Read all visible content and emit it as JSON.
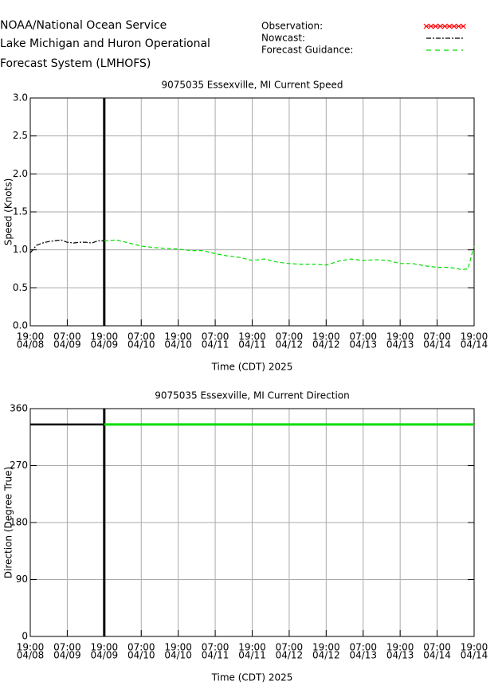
{
  "header": {
    "lines": [
      "NOAA/National Ocean Service",
      "Lake Michigan and Huron Operational",
      "Forecast System (LMHOFS)"
    ]
  },
  "legend": [
    {
      "label": "Observation:",
      "color": "#ff0000",
      "style": "x"
    },
    {
      "label": "Nowcast:",
      "color": "#000000",
      "style": "dash-dot"
    },
    {
      "label": "Forecast Guidance:",
      "color": "#00dd00",
      "style": "dash"
    }
  ],
  "chart_data": [
    {
      "type": "line",
      "title": "9075035 Essexville, MI Current Speed",
      "ylabel": "Speed (Knots)",
      "xlabel": "Time (CDT) 2025",
      "xlim": [
        0,
        144
      ],
      "xticks": [
        {
          "value": 0,
          "label": [
            "19:00",
            "04/08"
          ]
        },
        {
          "value": 12,
          "label": [
            "07:00",
            "04/09"
          ]
        },
        {
          "value": 24,
          "label": [
            "19:00",
            "04/09"
          ]
        },
        {
          "value": 36,
          "label": [
            "07:00",
            "04/10"
          ]
        },
        {
          "value": 48,
          "label": [
            "19:00",
            "04/10"
          ]
        },
        {
          "value": 60,
          "label": [
            "07:00",
            "04/11"
          ]
        },
        {
          "value": 72,
          "label": [
            "19:00",
            "04/11"
          ]
        },
        {
          "value": 84,
          "label": [
            "07:00",
            "04/12"
          ]
        },
        {
          "value": 96,
          "label": [
            "19:00",
            "04/12"
          ]
        },
        {
          "value": 108,
          "label": [
            "07:00",
            "04/13"
          ]
        },
        {
          "value": 120,
          "label": [
            "19:00",
            "04/13"
          ]
        },
        {
          "value": 132,
          "label": [
            "07:00",
            "04/14"
          ]
        },
        {
          "value": 144,
          "label": [
            "19:00",
            "04/14"
          ]
        }
      ],
      "ylim": [
        0,
        3
      ],
      "yticks": [
        {
          "value": 0,
          "label": "0.0"
        },
        {
          "value": 0.5,
          "label": "0.5"
        },
        {
          "value": 1,
          "label": "1.0"
        },
        {
          "value": 1.5,
          "label": "1.5"
        },
        {
          "value": 2,
          "label": "2.0"
        },
        {
          "value": 2.5,
          "label": "2.5"
        },
        {
          "value": 3,
          "label": "3.0"
        }
      ],
      "grid": true,
      "series": [
        {
          "color": "#000000",
          "dash": "6 2 2 2",
          "width": 1.2,
          "x": [
            0,
            2,
            4,
            6,
            8,
            10,
            12,
            14,
            16,
            18,
            20,
            22,
            24
          ],
          "values": [
            0.96,
            1.06,
            1.09,
            1.11,
            1.12,
            1.13,
            1.1,
            1.09,
            1.1,
            1.1,
            1.09,
            1.12,
            1.12
          ]
        },
        {
          "color": "#00dd00",
          "dash": "5 3",
          "width": 1.2,
          "x": [
            24,
            28,
            32,
            36,
            40,
            44,
            48,
            52,
            56,
            60,
            64,
            68,
            72,
            76,
            80,
            84,
            88,
            92,
            96,
            100,
            104,
            108,
            112,
            116,
            120,
            124,
            128,
            132,
            136,
            140,
            142,
            144
          ],
          "values": [
            1.12,
            1.13,
            1.09,
            1.05,
            1.03,
            1.02,
            1.01,
            0.99,
            0.99,
            0.95,
            0.92,
            0.9,
            0.86,
            0.88,
            0.84,
            0.82,
            0.81,
            0.81,
            0.8,
            0.85,
            0.88,
            0.86,
            0.87,
            0.86,
            0.82,
            0.82,
            0.79,
            0.77,
            0.77,
            0.74,
            0.75,
            1.05
          ]
        }
      ]
    },
    {
      "type": "line",
      "title": "9075035 Essexville, MI Current Direction",
      "ylabel": "Direction (Degree True)",
      "xlabel": "Time (CDT) 2025",
      "xlim": [
        0,
        144
      ],
      "xticks": [
        {
          "value": 0,
          "label": [
            "19:00",
            "04/08"
          ]
        },
        {
          "value": 12,
          "label": [
            "07:00",
            "04/09"
          ]
        },
        {
          "value": 24,
          "label": [
            "19:00",
            "04/09"
          ]
        },
        {
          "value": 36,
          "label": [
            "07:00",
            "04/10"
          ]
        },
        {
          "value": 48,
          "label": [
            "19:00",
            "04/10"
          ]
        },
        {
          "value": 60,
          "label": [
            "07:00",
            "04/11"
          ]
        },
        {
          "value": 72,
          "label": [
            "19:00",
            "04/11"
          ]
        },
        {
          "value": 84,
          "label": [
            "07:00",
            "04/12"
          ]
        },
        {
          "value": 96,
          "label": [
            "19:00",
            "04/12"
          ]
        },
        {
          "value": 108,
          "label": [
            "07:00",
            "04/13"
          ]
        },
        {
          "value": 120,
          "label": [
            "19:00",
            "04/13"
          ]
        },
        {
          "value": 132,
          "label": [
            "07:00",
            "04/14"
          ]
        },
        {
          "value": 144,
          "label": [
            "19:00",
            "04/14"
          ]
        }
      ],
      "ylim": [
        0,
        360
      ],
      "yticks": [
        0,
        90,
        180,
        270,
        360
      ],
      "grid": true,
      "series": [
        {
          "color": "#000000",
          "dash": "none",
          "width": 2.5,
          "x": [
            0,
            6,
            12,
            18,
            24
          ],
          "values": [
            335,
            335,
            335,
            335,
            335
          ]
        },
        {
          "color": "#00dd00",
          "dash": "none",
          "width": 3,
          "x": [
            24,
            84,
            144
          ],
          "values": [
            335,
            335,
            335
          ]
        }
      ]
    }
  ]
}
